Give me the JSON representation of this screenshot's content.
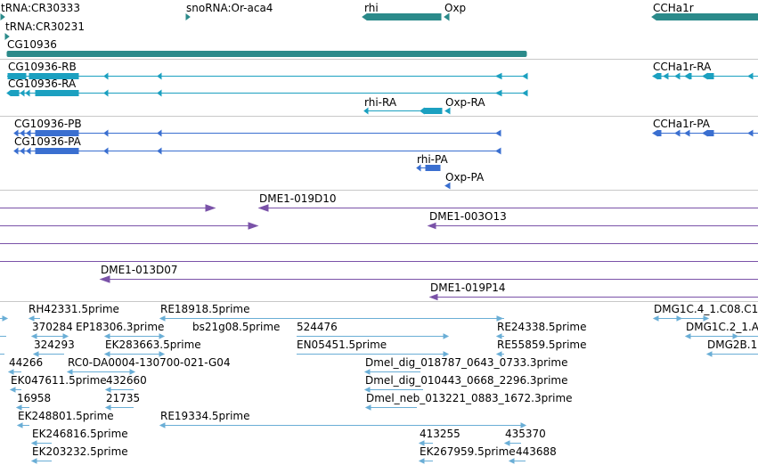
{
  "colors": {
    "gene": "#2b8a8a",
    "mrna": "#1ba0c0",
    "protein": "#3a6fd0",
    "clone": "#7a52a8",
    "est": "#6aaed6",
    "separator": "#c8c8c8"
  },
  "tracks": {
    "genes": {
      "labels": [
        "tRNA:CR30333",
        "snoRNA:Or-aca4",
        "rhi",
        "Oxp",
        "CCHa1r",
        "tRNA:CR30231",
        "CG10936"
      ]
    },
    "transcripts": {
      "labels": [
        "CG10936-RB",
        "CCHa1r-RA",
        "CG10936-RA",
        "rhi-RA",
        "Oxp-RA"
      ]
    },
    "proteins": {
      "labels": [
        "CG10936-PB",
        "CCHa1r-PA",
        "CG10936-PA",
        "rhi-PA",
        "Oxp-PA"
      ]
    },
    "clones": {
      "labels": [
        "DME1-019D10",
        "DME1-003O13",
        "DME1-013D07",
        "DME1-019P14"
      ]
    },
    "ests": {
      "labels": [
        "RH42331.5prime",
        "RE18918.5prime",
        "DMG1C.4_1.C08.C1",
        "370284",
        "EP18306.3prime",
        "bs21g08.5prime",
        "524476",
        "RE24338.5prime",
        "DMG1C.2_1.A",
        "324293",
        "EK283663.5prime",
        "EN05451.5prime",
        "RE55859.5prime",
        "DMG2B.1",
        "44266",
        "RC0-DA0004-130700-021-G04",
        "Dmel_dig_018787_0643_0733.3prime",
        "EK047611.5prime",
        "432660",
        "Dmel_dig_010443_0668_2296.3prime",
        "16958",
        "21735",
        "Dmel_neb_013221_0883_1672.3prime",
        "EK248801.5prime",
        "RE19334.5prime",
        "EK246816.5prime",
        "413255",
        "435370",
        "EK203232.5prime",
        "EK267959.5prime",
        "443688"
      ]
    }
  }
}
